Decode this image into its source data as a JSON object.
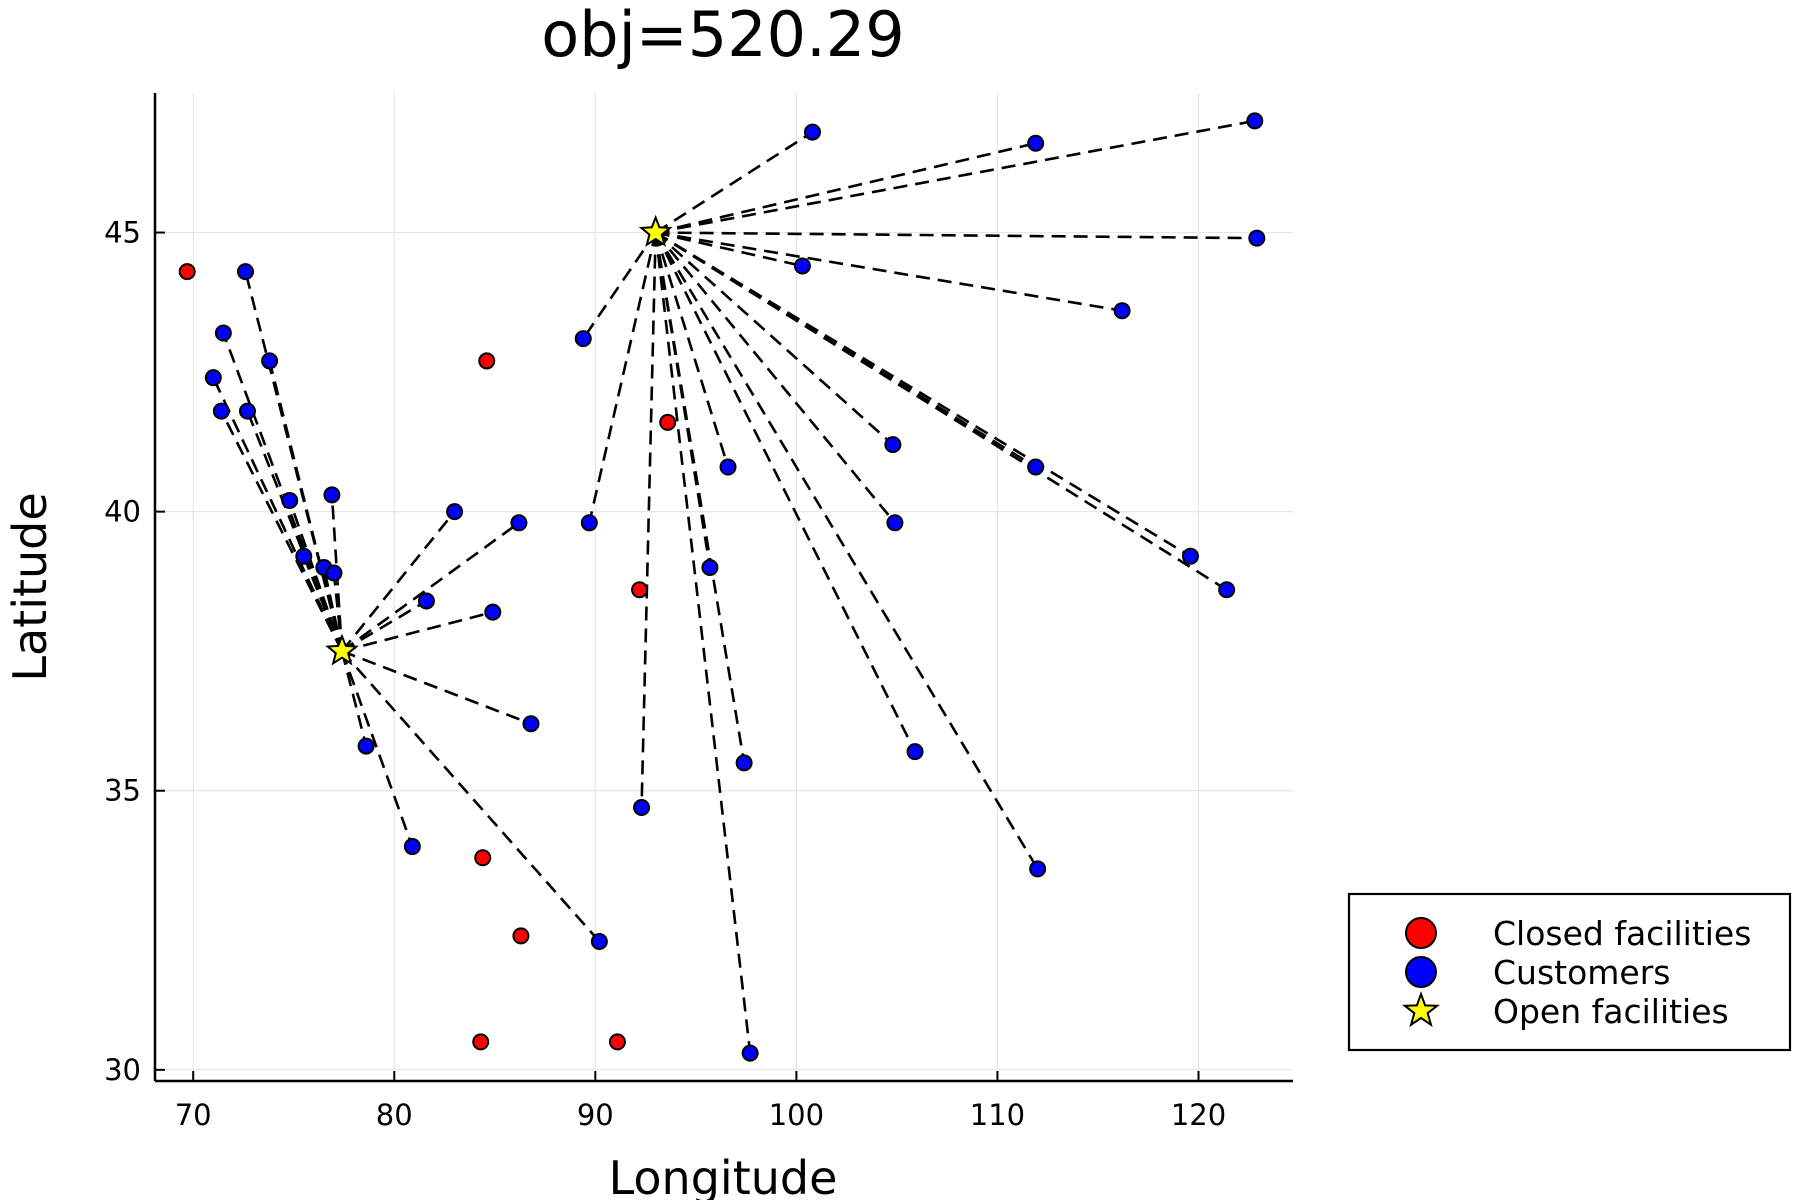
{
  "chart_data": {
    "type": "scatter",
    "title": "obj=520.29",
    "xlabel": "Longitude",
    "ylabel": "Latitude",
    "xlim": [
      68.1,
      124.7
    ],
    "ylim": [
      29.8,
      47.5
    ],
    "x_ticks": [
      70,
      80,
      90,
      100,
      110,
      120
    ],
    "y_ticks": [
      30,
      35,
      40,
      45
    ],
    "grid": true,
    "legend_position": "outside-bottom-right",
    "series": [
      {
        "name": "Closed facilities",
        "marker": "circle",
        "color": "#ff0000",
        "points": [
          [
            69.7,
            44.3
          ],
          [
            84.6,
            42.7
          ],
          [
            93.6,
            41.6
          ],
          [
            92.2,
            38.6
          ],
          [
            84.4,
            33.8
          ],
          [
            86.3,
            32.4
          ],
          [
            84.3,
            30.5
          ],
          [
            91.1,
            30.5
          ]
        ]
      },
      {
        "name": "Customers",
        "marker": "circle",
        "color": "#0000ff",
        "points": [
          [
            72.6,
            44.3
          ],
          [
            71.5,
            43.2
          ],
          [
            73.8,
            42.7
          ],
          [
            71.0,
            42.4
          ],
          [
            71.4,
            41.8
          ],
          [
            72.7,
            41.8
          ],
          [
            74.8,
            40.2
          ],
          [
            76.9,
            40.3
          ],
          [
            75.5,
            39.2
          ],
          [
            76.5,
            39.0
          ],
          [
            77.0,
            38.9
          ],
          [
            83.0,
            40.0
          ],
          [
            86.2,
            39.8
          ],
          [
            81.6,
            38.4
          ],
          [
            84.9,
            38.2
          ],
          [
            86.8,
            36.2
          ],
          [
            78.6,
            35.8
          ],
          [
            80.9,
            34.0
          ],
          [
            90.2,
            32.3
          ],
          [
            100.8,
            46.8
          ],
          [
            111.9,
            46.6
          ],
          [
            122.8,
            47.0
          ],
          [
            122.9,
            44.9
          ],
          [
            100.3,
            44.4
          ],
          [
            116.2,
            43.6
          ],
          [
            89.4,
            43.1
          ],
          [
            104.8,
            41.2
          ],
          [
            96.6,
            40.8
          ],
          [
            111.9,
            40.8
          ],
          [
            89.7,
            39.8
          ],
          [
            104.9,
            39.8
          ],
          [
            95.7,
            39.0
          ],
          [
            119.6,
            39.2
          ],
          [
            121.4,
            38.6
          ],
          [
            97.4,
            35.5
          ],
          [
            105.9,
            35.7
          ],
          [
            92.3,
            34.7
          ],
          [
            112.0,
            33.6
          ],
          [
            97.7,
            30.3
          ]
        ]
      },
      {
        "name": "Open facilities",
        "marker": "star",
        "color": "#ffff00",
        "points": [
          [
            77.4,
            37.5
          ],
          [
            93.0,
            45.0
          ]
        ]
      }
    ],
    "assignments": [
      {
        "facility": [
          77.4,
          37.5
        ],
        "customers": [
          [
            72.6,
            44.3
          ],
          [
            71.5,
            43.2
          ],
          [
            73.8,
            42.7
          ],
          [
            71.0,
            42.4
          ],
          [
            71.4,
            41.8
          ],
          [
            72.7,
            41.8
          ],
          [
            74.8,
            40.2
          ],
          [
            76.9,
            40.3
          ],
          [
            75.5,
            39.2
          ],
          [
            76.5,
            39.0
          ],
          [
            77.0,
            38.9
          ],
          [
            83.0,
            40.0
          ],
          [
            86.2,
            39.8
          ],
          [
            81.6,
            38.4
          ],
          [
            84.9,
            38.2
          ],
          [
            86.8,
            36.2
          ],
          [
            78.6,
            35.8
          ],
          [
            80.9,
            34.0
          ],
          [
            90.2,
            32.3
          ]
        ]
      },
      {
        "facility": [
          93.0,
          45.0
        ],
        "customers": [
          [
            100.8,
            46.8
          ],
          [
            111.9,
            46.6
          ],
          [
            122.8,
            47.0
          ],
          [
            122.9,
            44.9
          ],
          [
            100.3,
            44.4
          ],
          [
            116.2,
            43.6
          ],
          [
            89.4,
            43.1
          ],
          [
            104.8,
            41.2
          ],
          [
            96.6,
            40.8
          ],
          [
            111.9,
            40.8
          ],
          [
            89.7,
            39.8
          ],
          [
            104.9,
            39.8
          ],
          [
            95.7,
            39.0
          ],
          [
            119.6,
            39.2
          ],
          [
            121.4,
            38.6
          ],
          [
            97.4,
            35.5
          ],
          [
            105.9,
            35.7
          ],
          [
            92.3,
            34.7
          ],
          [
            112.0,
            33.6
          ],
          [
            97.7,
            30.3
          ]
        ]
      }
    ]
  }
}
